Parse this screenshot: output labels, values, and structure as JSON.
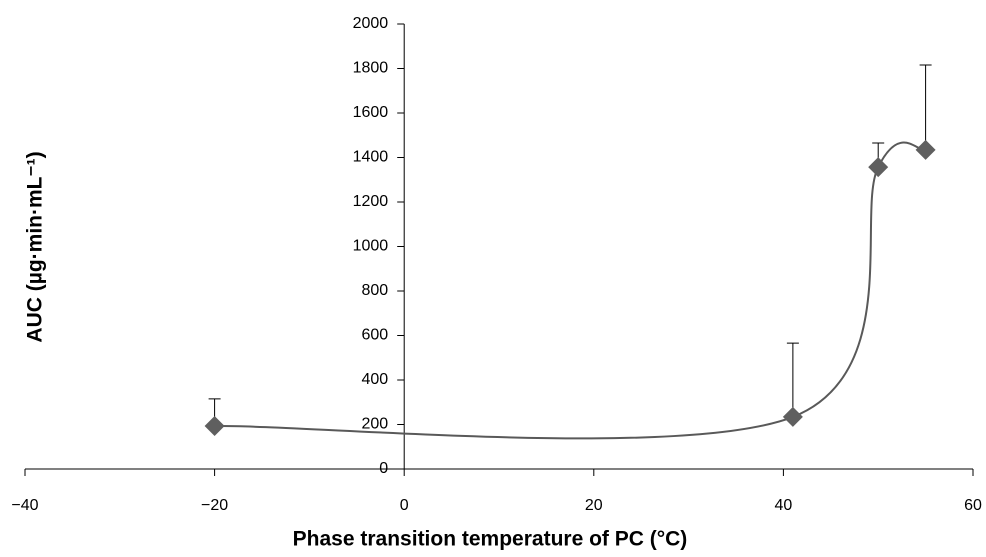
{
  "chart_data": {
    "type": "scatter",
    "x_label": "Phase transition temperature of PC (°C)",
    "y_label": "AUC (µg·min·mL⁻¹)",
    "x": [
      -20,
      41,
      50,
      55
    ],
    "values": [
      193,
      234,
      1357,
      1434
    ],
    "errors": [
      122,
      332,
      108,
      382
    ],
    "color": "#5f5f5f",
    "line_color": "#595959",
    "error_color": "#000000",
    "smooth_line": true,
    "xlim": [
      -40,
      60
    ],
    "xticks": [
      {
        "value": -40,
        "label": "−40"
      },
      {
        "value": -20,
        "label": "−20"
      },
      0,
      20,
      40,
      60
    ],
    "ylim": [
      0,
      2000
    ],
    "yticks": [
      0,
      200,
      400,
      600,
      800,
      1000,
      1200,
      1400,
      1600,
      1800,
      2000
    ]
  }
}
